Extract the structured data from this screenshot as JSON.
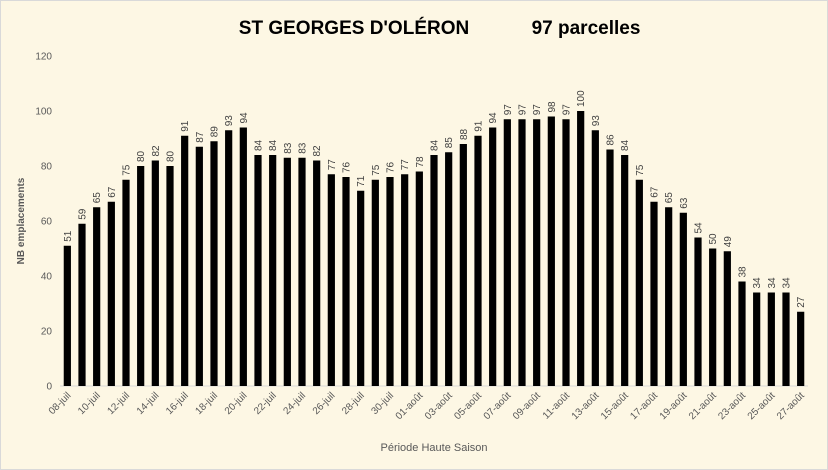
{
  "chart_data": {
    "type": "bar",
    "title": "ST GEORGES D'OLÉRON",
    "subtitle": "97 parcelles",
    "ylabel": "NB emplacements",
    "xlabel": "Période Haute Saison",
    "color": "#000000",
    "categories": [
      "08-juil",
      null,
      "10-juil",
      null,
      "12-juil",
      null,
      "14-juil",
      null,
      "16-juil",
      null,
      "18-juil",
      null,
      "20-juil",
      null,
      "22-juil",
      null,
      "24-juil",
      null,
      "26-juil",
      null,
      "28-juil",
      null,
      "30-juil",
      null,
      "01-août",
      null,
      "03-août",
      null,
      "05-août",
      null,
      "07-août",
      null,
      "09-août",
      null,
      "11-août",
      null,
      "13-août",
      null,
      "15-août",
      null,
      "17-août",
      null,
      "19-août",
      null,
      "21-août",
      null,
      "23-août",
      null,
      "25-août",
      null,
      "27-août"
    ],
    "values": [
      51,
      59,
      65,
      67,
      75,
      80,
      82,
      80,
      91,
      87,
      89,
      93,
      94,
      84,
      84,
      83,
      83,
      82,
      77,
      76,
      71,
      75,
      76,
      77,
      78,
      84,
      85,
      88,
      91,
      94,
      97,
      97,
      97,
      98,
      97,
      100,
      93,
      86,
      84,
      75,
      67,
      65,
      63,
      54,
      50,
      49,
      38,
      34,
      34,
      34,
      27
    ],
    "ylim": [
      0,
      120
    ],
    "yticks": [
      0,
      20,
      40,
      60,
      80,
      100,
      120
    ]
  }
}
